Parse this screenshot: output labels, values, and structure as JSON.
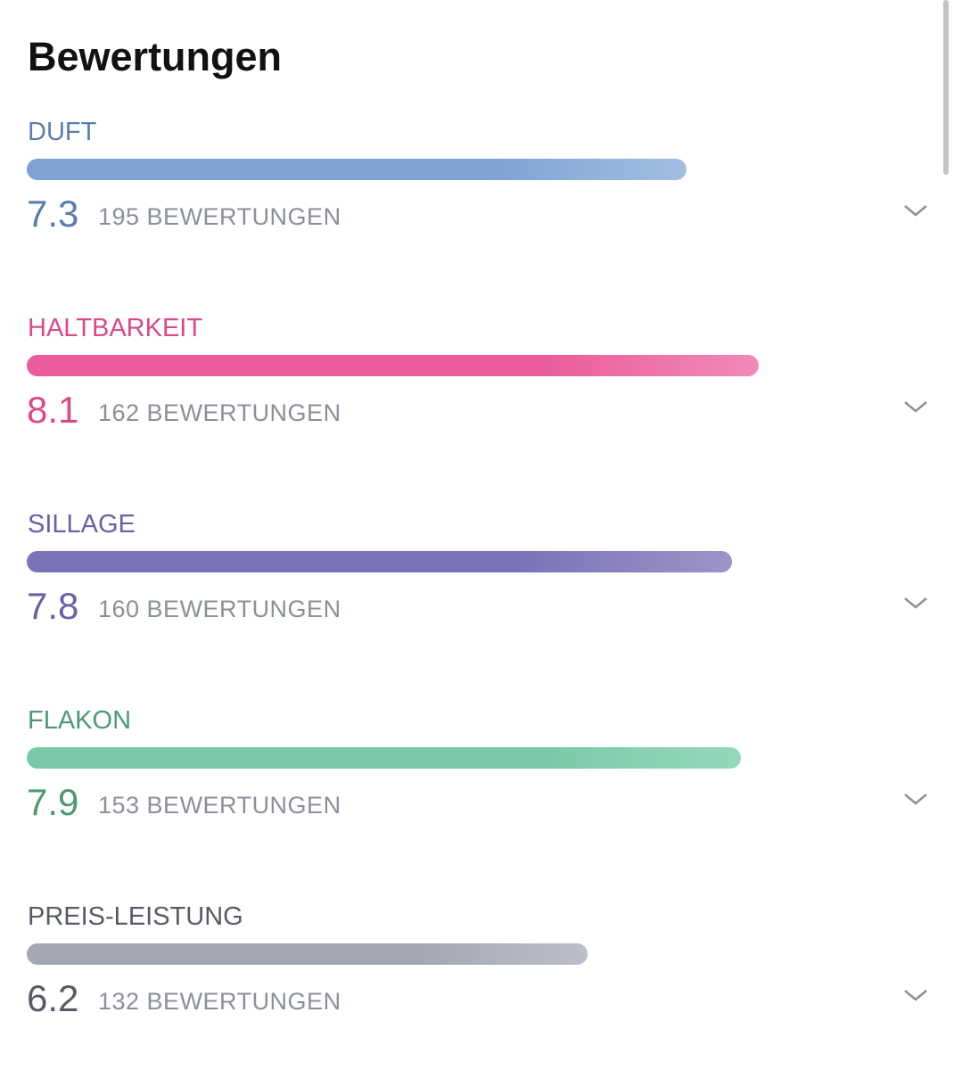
{
  "title": "Bewertungen",
  "xlim": [
    0,
    10
  ],
  "ratings": [
    {
      "label": "DUFT",
      "score": 7.3,
      "count": "195 BEWERTUNGEN",
      "color": "#5a7db0",
      "bar_colors": [
        "#7ea2d2",
        "#a2bfe2"
      ]
    },
    {
      "label": "HALTBARKEIT",
      "score": 8.1,
      "count": "162 BEWERTUNGEN",
      "color": "#d94a8b",
      "bar_colors": [
        "#ea5c9b",
        "#f08ab8"
      ]
    },
    {
      "label": "SILLAGE",
      "score": 7.8,
      "count": "160 BEWERTUNGEN",
      "color": "#6b60a7",
      "bar_colors": [
        "#7a73b8",
        "#9d94c8"
      ]
    },
    {
      "label": "FLAKON",
      "score": 7.9,
      "count": "153 BEWERTUNGEN",
      "color": "#4c9a73",
      "bar_colors": [
        "#79c8a7",
        "#95d8bb"
      ]
    },
    {
      "label": "PREIS-LEISTUNG",
      "score": 6.2,
      "count": "132 BEWERTUNGEN",
      "color": "#565b66",
      "bar_colors": [
        "#a4a8b5",
        "#bcbfca"
      ]
    }
  ]
}
